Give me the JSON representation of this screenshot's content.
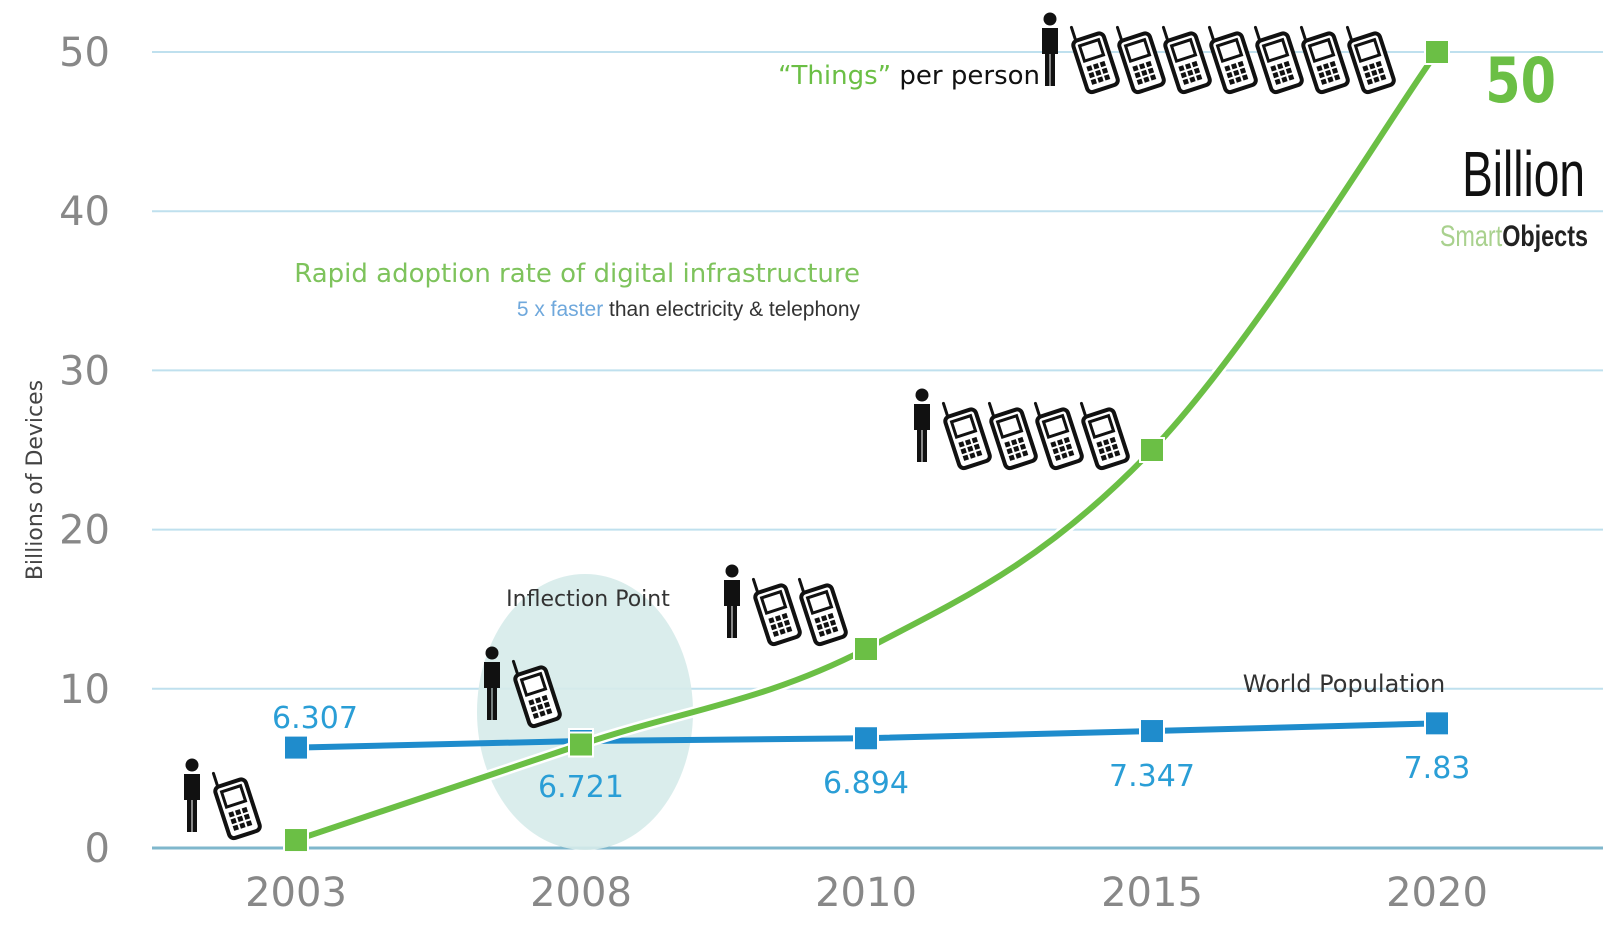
{
  "chart_data": {
    "type": "line",
    "categories": [
      "2003",
      "2008",
      "2010",
      "2015",
      "2020"
    ],
    "ylabel": "Billions of Devices",
    "ylim": [
      0,
      50
    ],
    "yticks": [
      0,
      10,
      20,
      30,
      40,
      50
    ],
    "grid": true,
    "series": [
      {
        "values": [
          0.5,
          6.5,
          12.5,
          25,
          50
        ],
        "color": "#6bbf45"
      },
      {
        "name": "World Population",
        "values": [
          6.307,
          6.721,
          6.894,
          7.347,
          7.83
        ],
        "color": "#1f8ccc",
        "labels": [
          "6.307",
          "6.721",
          "6.894",
          "7.347",
          "7.83"
        ]
      }
    ],
    "person_phone_counts": [
      1,
      1,
      2,
      4,
      7
    ],
    "annotations": {
      "things_open_quote": "“",
      "things_word": "Things",
      "things_close_quote": "”",
      "per_person": " per person",
      "rapid": "Rapid adoption rate of digital infrastructure",
      "faster": "5 x faster",
      "than": " than electricity & telephony",
      "inflection": "Inflection Point",
      "world_population": "World Population",
      "big_number": "50",
      "billion": "Billion",
      "smart": "Smart",
      "objects": "Objects"
    },
    "colors": {
      "green": "#6bbf45",
      "blue": "#1f8ccc",
      "grid": "#bfe0ee",
      "inflection_fill": "#d6ebea"
    }
  }
}
